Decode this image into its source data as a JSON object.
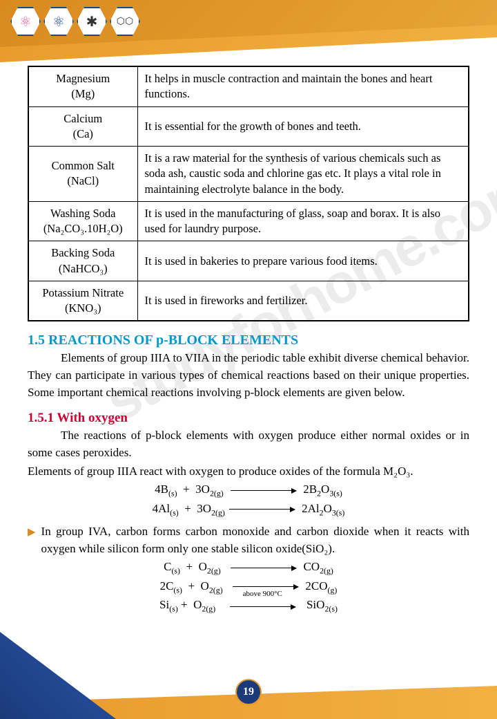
{
  "icons": [
    "⚛",
    "⚛",
    "✱",
    "⬡⬡"
  ],
  "table": {
    "rows": [
      {
        "name": "Magnesium",
        "formula": "(Mg)",
        "desc": "It helps in muscle contraction and maintain the bones and heart functions."
      },
      {
        "name": "Calcium",
        "formula": "(Ca)",
        "desc": "It is essential for the growth of bones and teeth."
      },
      {
        "name": "Common Salt",
        "formula": "(NaCl)",
        "desc": "It is a raw material for the synthesis of various chemicals such as soda ash, caustic soda and chlorine gas etc. It plays a vital role in maintaining electrolyte balance in the body."
      },
      {
        "name": "Washing Soda",
        "formula": "(Na₂CO₃.10H₂O)",
        "desc": "It is used in the manufacturing of glass, soap and borax. It is also used for laundry purpose."
      },
      {
        "name": "Backing Soda",
        "formula": "(NaHCO₃)",
        "desc": "It is used in bakeries to prepare various food items."
      },
      {
        "name": "Potassium Nitrate",
        "formula": "(KNO₃)",
        "desc": "It is used in fireworks and fertilizer."
      }
    ]
  },
  "heading1": "1.5 REACTIONS OF p-BLOCK ELEMENTS",
  "para1": "Elements of group IIIA to VIIA in the periodic table exhibit diverse chemical behavior. They can participate in various types of chemical reactions based on their unique properties. Some important chemical reactions involving p-block elements are given below.",
  "heading2": "1.5.1 With oxygen",
  "para2": "The reactions of p-block elements with oxygen produce either normal oxides or in some cases peroxides.",
  "para3": "Elements of group IIIA react with oxygen to produce oxides of the formula M₂O₃.",
  "bullet1": "In group IVA, carbon forms carbon monoxide and carbon dioxide when it reacts with oxygen while silicon form only one stable silicon oxide(SiO₂).",
  "eqlabel": "above 900°C",
  "pagenum": "19",
  "watermark": "studyforhome.com",
  "colors": {
    "heading1": "#0099cc",
    "heading2": "#cc0033",
    "orange": "#e89a2a",
    "navy": "#1a3a7a"
  }
}
